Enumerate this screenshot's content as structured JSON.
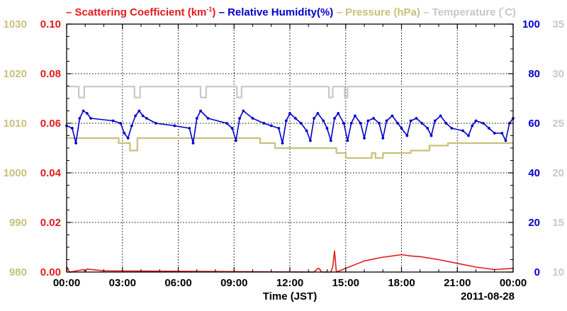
{
  "chart_data": {
    "type": "line",
    "legend_placement": "top",
    "legend": [
      {
        "key": "scat",
        "label": "Scattering Coefficient (km",
        "sup": "-1",
        "tail": ")",
        "color": "#e31a1c"
      },
      {
        "key": "rh",
        "label": "Relative Humidity(%)",
        "color": "#0000cc"
      },
      {
        "key": "pres",
        "label": "Pressure (hPa)",
        "color": "#c8c07a"
      },
      {
        "key": "temp",
        "label": "Temperature (",
        "deg": "°",
        "tail": "C)",
        "color": "#c8c8c8"
      }
    ],
    "xlabel": "Time (JST)",
    "date_label": "2011-08-28",
    "x_ticks": [
      "00:00",
      "03:00",
      "06:00",
      "09:00",
      "12:00",
      "15:00",
      "18:00",
      "21:00",
      "00:00"
    ],
    "xlim_hours": [
      0,
      24
    ],
    "grid": true,
    "axes": {
      "pressure": {
        "range": [
          980,
          1030
        ],
        "ticks": [
          "980",
          "990",
          "1000",
          "1010",
          "1020",
          "1030"
        ],
        "color": "#c8c07a"
      },
      "scattering": {
        "range": [
          0,
          0.1
        ],
        "ticks": [
          "0.00",
          "0.02",
          "0.04",
          "0.06",
          "0.08",
          "0.10"
        ],
        "color": "#e31a1c"
      },
      "humidity": {
        "range": [
          0,
          100
        ],
        "ticks": [
          "0",
          "20",
          "40",
          "60",
          "80",
          "100"
        ],
        "color": "#0000cc"
      },
      "temperature": {
        "range": [
          10,
          35
        ],
        "ticks": [
          "10",
          "15",
          "20",
          "25",
          "30",
          "35"
        ],
        "color": "#c8c8c8"
      }
    },
    "series": [
      {
        "key": "temp",
        "axis": "temperature",
        "color": "#c8c8c8",
        "step": true,
        "points": [
          [
            0,
            28.7
          ],
          [
            0.65,
            28.7
          ],
          [
            0.65,
            27.6
          ],
          [
            0.95,
            27.6
          ],
          [
            0.95,
            28.7
          ],
          [
            3.65,
            28.7
          ],
          [
            3.65,
            27.6
          ],
          [
            3.95,
            27.6
          ],
          [
            3.95,
            28.7
          ],
          [
            7.2,
            28.7
          ],
          [
            7.2,
            27.6
          ],
          [
            7.5,
            27.6
          ],
          [
            7.5,
            28.7
          ],
          [
            9.15,
            28.7
          ],
          [
            9.15,
            27.6
          ],
          [
            9.4,
            27.6
          ],
          [
            9.4,
            28.7
          ],
          [
            14.1,
            28.7
          ],
          [
            14.1,
            27.6
          ],
          [
            14.3,
            27.6
          ],
          [
            14.3,
            28.7
          ],
          [
            14.95,
            28.7
          ],
          [
            14.95,
            27.6
          ],
          [
            15.1,
            27.6
          ],
          [
            15.1,
            28.7
          ],
          [
            24,
            28.7
          ]
        ]
      },
      {
        "key": "pres",
        "axis": "pressure",
        "color": "#c8c07a",
        "step": true,
        "points": [
          [
            0,
            1007.0
          ],
          [
            2.8,
            1007.0
          ],
          [
            2.8,
            1006.0
          ],
          [
            3.4,
            1006.0
          ],
          [
            3.4,
            1004.5
          ],
          [
            3.8,
            1004.5
          ],
          [
            3.8,
            1007.0
          ],
          [
            10.4,
            1007.0
          ],
          [
            10.4,
            1006.0
          ],
          [
            11.2,
            1006.0
          ],
          [
            11.2,
            1005.0
          ],
          [
            14.5,
            1005.0
          ],
          [
            14.5,
            1004.0
          ],
          [
            15.0,
            1004.0
          ],
          [
            15.0,
            1003.0
          ],
          [
            16.4,
            1003.0
          ],
          [
            16.4,
            1004.0
          ],
          [
            16.6,
            1004.0
          ],
          [
            16.6,
            1003.0
          ],
          [
            17.0,
            1003.0
          ],
          [
            17.0,
            1004.0
          ],
          [
            18.5,
            1004.0
          ],
          [
            18.5,
            1004.5
          ],
          [
            19.5,
            1004.5
          ],
          [
            19.5,
            1005.5
          ],
          [
            20.5,
            1005.5
          ],
          [
            20.5,
            1006.0
          ],
          [
            24,
            1006.0
          ]
        ]
      },
      {
        "key": "rh",
        "axis": "humidity",
        "color": "#0000cc",
        "markers": true,
        "points": [
          [
            0,
            59
          ],
          [
            0.3,
            58
          ],
          [
            0.5,
            52
          ],
          [
            0.7,
            62
          ],
          [
            0.9,
            65
          ],
          [
            1.1,
            64
          ],
          [
            1.3,
            62
          ],
          [
            2.5,
            61
          ],
          [
            2.9,
            60
          ],
          [
            3.1,
            56
          ],
          [
            3.3,
            54
          ],
          [
            3.5,
            59
          ],
          [
            3.7,
            63
          ],
          [
            3.9,
            65
          ],
          [
            4.1,
            63
          ],
          [
            4.3,
            62
          ],
          [
            4.8,
            60
          ],
          [
            5.8,
            59
          ],
          [
            6.6,
            58
          ],
          [
            6.8,
            52
          ],
          [
            7.0,
            62
          ],
          [
            7.2,
            65
          ],
          [
            7.6,
            62
          ],
          [
            8.6,
            60
          ],
          [
            8.9,
            58
          ],
          [
            9.1,
            53
          ],
          [
            9.3,
            62
          ],
          [
            9.5,
            65
          ],
          [
            10.0,
            62
          ],
          [
            10.6,
            60
          ],
          [
            11.0,
            59
          ],
          [
            11.4,
            58
          ],
          [
            11.6,
            52
          ],
          [
            11.8,
            61
          ],
          [
            12.0,
            64
          ],
          [
            12.3,
            62
          ],
          [
            12.6,
            60
          ],
          [
            12.9,
            57
          ],
          [
            13.1,
            53
          ],
          [
            13.3,
            62
          ],
          [
            13.5,
            64
          ],
          [
            13.8,
            61
          ],
          [
            14.0,
            58
          ],
          [
            14.2,
            53
          ],
          [
            14.4,
            62
          ],
          [
            14.6,
            64
          ],
          [
            14.9,
            60
          ],
          [
            15.1,
            53
          ],
          [
            15.3,
            60
          ],
          [
            15.5,
            63
          ],
          [
            15.8,
            60
          ],
          [
            16.0,
            54
          ],
          [
            16.2,
            61
          ],
          [
            16.5,
            62
          ],
          [
            16.8,
            60
          ],
          [
            17.0,
            54
          ],
          [
            17.2,
            61
          ],
          [
            17.5,
            63
          ],
          [
            17.8,
            60
          ],
          [
            18.0,
            58
          ],
          [
            18.3,
            55
          ],
          [
            18.5,
            61
          ],
          [
            18.8,
            62
          ],
          [
            19.1,
            60
          ],
          [
            19.4,
            58
          ],
          [
            19.6,
            55
          ],
          [
            19.8,
            61
          ],
          [
            20.1,
            63
          ],
          [
            20.4,
            60
          ],
          [
            20.7,
            58
          ],
          [
            21.3,
            57
          ],
          [
            21.6,
            55
          ],
          [
            21.8,
            59
          ],
          [
            22.0,
            61
          ],
          [
            22.4,
            60
          ],
          [
            22.7,
            58
          ],
          [
            23.0,
            56
          ],
          [
            23.4,
            56
          ],
          [
            23.6,
            53
          ],
          [
            23.8,
            60
          ],
          [
            24.0,
            62
          ]
        ]
      },
      {
        "key": "scat",
        "axis": "scattering",
        "color": "#e31a1c",
        "points": [
          [
            0,
            0.0004
          ],
          [
            0.05,
            0.0018
          ],
          [
            0.15,
            0.0
          ],
          [
            0.2,
            0.0
          ],
          [
            0.9,
            0.001
          ],
          [
            1.0,
            0.0003
          ],
          [
            1.1,
            0.0012
          ],
          [
            2.0,
            0.0005
          ],
          [
            13.3,
            0.0
          ],
          [
            13.5,
            0.0015
          ],
          [
            13.6,
            0.0012
          ],
          [
            13.7,
            0.0
          ],
          [
            14.2,
            0.0
          ],
          [
            14.3,
            0.002
          ],
          [
            14.4,
            0.0085
          ],
          [
            14.5,
            0.0
          ],
          [
            15.0,
            0.0015
          ],
          [
            16.0,
            0.0045
          ],
          [
            17.0,
            0.006
          ],
          [
            17.5,
            0.0065
          ],
          [
            18.0,
            0.007
          ],
          [
            18.5,
            0.0065
          ],
          [
            19.0,
            0.0062
          ],
          [
            20.0,
            0.005
          ],
          [
            21.0,
            0.0035
          ],
          [
            22.0,
            0.002
          ],
          [
            23.0,
            0.001
          ],
          [
            24.0,
            0.0015
          ]
        ]
      }
    ]
  }
}
